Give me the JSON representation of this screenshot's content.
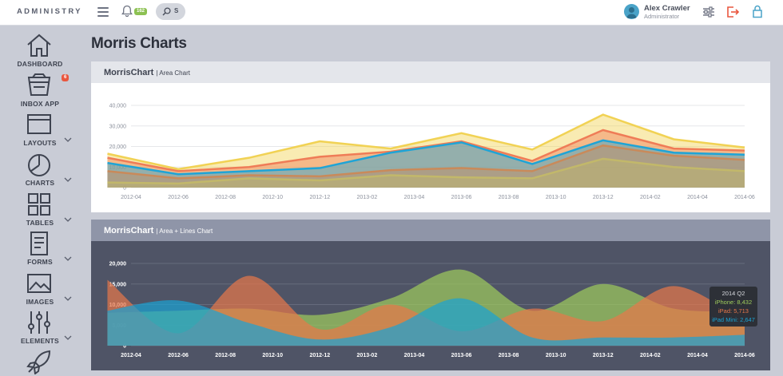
{
  "brand": "ADMINISTRY",
  "notifications": {
    "count": "162"
  },
  "search": {
    "label": "S"
  },
  "user": {
    "name": "Alex Crawler",
    "role": "Administrator"
  },
  "colors": {
    "sidebar_bg": "#c9ccd6",
    "inbox_badge": "#e9573f",
    "notif_badge": "#8cc152",
    "logout_icon": "#e9573f",
    "lock_icon": "#4aa3c8"
  },
  "sidebar": {
    "items": [
      {
        "label": "DASHBOARD",
        "icon": "home-icon",
        "has_children": false
      },
      {
        "label": "INBOX APP",
        "icon": "inbox-icon",
        "has_children": false,
        "badge": "6"
      },
      {
        "label": "LAYOUTS",
        "icon": "layout-icon",
        "has_children": true
      },
      {
        "label": "CHARTS",
        "icon": "pie-chart-icon",
        "has_children": true
      },
      {
        "label": "TABLES",
        "icon": "grid-icon",
        "has_children": true
      },
      {
        "label": "FORMS",
        "icon": "form-icon",
        "has_children": true
      },
      {
        "label": "IMAGES",
        "icon": "image-icon",
        "has_children": true
      },
      {
        "label": "ELEMENTS",
        "icon": "sliders-icon",
        "has_children": true
      },
      {
        "label": "",
        "icon": "rocket-icon",
        "has_children": false
      }
    ]
  },
  "page": {
    "title": "Morris Charts"
  },
  "panels": [
    {
      "title": "MorrisChart",
      "subtitle": "| Area Chart"
    },
    {
      "title": "MorrisChart",
      "subtitle": "| Area + Lines Chart"
    }
  ],
  "chart_data": [
    {
      "type": "area",
      "x": [
        "2012-03",
        "2012-06",
        "2012-09",
        "2012-12",
        "2013-03",
        "2013-06",
        "2013-09",
        "2013-12",
        "2014-03",
        "2014-06"
      ],
      "x_ticks": [
        "2012-04",
        "2012-06",
        "2012-08",
        "2012-10",
        "2012-12",
        "2013-02",
        "2013-04",
        "2013-06",
        "2013-08",
        "2013-10",
        "2013-12",
        "2014-02",
        "2014-04",
        "2014-06"
      ],
      "y_ticks": [
        "0",
        "10,000",
        "20,000",
        "30,000",
        "40,000"
      ],
      "ylim": [
        0,
        40000
      ],
      "stacked": true,
      "grid": true,
      "series": [
        {
          "color": "#c2b86a",
          "values": [
            2500,
            2000,
            4500,
            3500,
            6000,
            5000,
            4500,
            14000,
            10000,
            8000
          ]
        },
        {
          "color": "#c98a5a",
          "values": [
            8000,
            4500,
            6000,
            5500,
            8500,
            9500,
            8000,
            20500,
            15500,
            13500
          ]
        },
        {
          "color": "#1fa4d6",
          "values": [
            12000,
            6500,
            8000,
            9500,
            17000,
            22000,
            11500,
            23000,
            17000,
            16000
          ]
        },
        {
          "color": "#ef7c57",
          "values": [
            14500,
            8000,
            10000,
            15000,
            17500,
            22500,
            13000,
            28000,
            19000,
            18000
          ]
        },
        {
          "color": "#f1d254",
          "values": [
            16500,
            9000,
            14500,
            22500,
            19000,
            26500,
            18500,
            35500,
            23500,
            19500
          ]
        }
      ]
    },
    {
      "type": "area",
      "x": [
        "2012-03",
        "2012-06",
        "2012-09",
        "2012-12",
        "2013-03",
        "2013-06",
        "2013-09",
        "2013-12",
        "2014-03",
        "2014-06"
      ],
      "x_ticks": [
        "2012-04",
        "2012-06",
        "2012-08",
        "2012-10",
        "2012-12",
        "2013-02",
        "2013-04",
        "2013-06",
        "2013-08",
        "2013-10",
        "2013-12",
        "2014-02",
        "2014-04",
        "2014-06"
      ],
      "y_ticks": [
        "0",
        "5,000",
        "10,000",
        "15,000",
        "20,000"
      ],
      "ylim": [
        0,
        20000
      ],
      "stacked": false,
      "smooth": true,
      "grid": true,
      "series": [
        {
          "name": "iPhone",
          "color": "#9fcc5c",
          "values": [
            8000,
            8500,
            9000,
            7500,
            11500,
            18500,
            8500,
            15000,
            9000,
            8432
          ]
        },
        {
          "name": "iPad",
          "color": "#e8774a",
          "values": [
            16000,
            3000,
            17000,
            4000,
            10000,
            3500,
            9000,
            6000,
            14500,
            5713
          ]
        },
        {
          "name": "iPad Mini",
          "color": "#1aa3d4",
          "values": [
            8500,
            11000,
            5500,
            1500,
            4500,
            11500,
            2000,
            2000,
            2000,
            2647
          ]
        }
      ],
      "tooltip": {
        "title": "2014 Q2",
        "lines": [
          {
            "text": "iPhone: 8,432",
            "color": "#9fcc5c"
          },
          {
            "text": "iPad: 5,713",
            "color": "#e8774a"
          },
          {
            "text": "iPad Mini: 2,647",
            "color": "#1aa3d4"
          }
        ]
      }
    }
  ]
}
